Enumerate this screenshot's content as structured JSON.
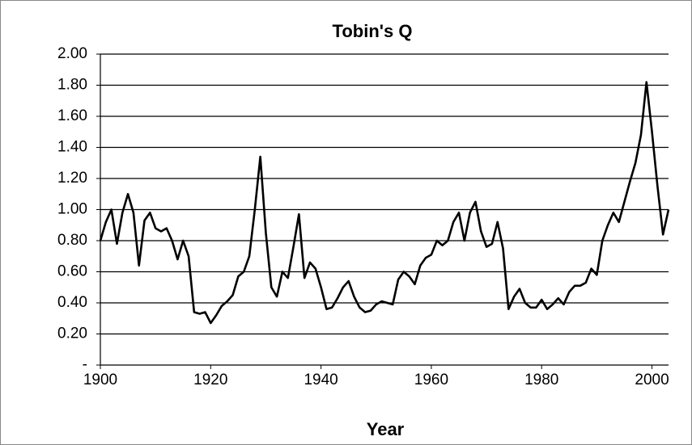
{
  "chart_data": {
    "type": "line",
    "title": "Tobin's Q",
    "x_label": "Year",
    "x": [
      1900,
      1901,
      1902,
      1903,
      1904,
      1905,
      1906,
      1907,
      1908,
      1909,
      1910,
      1911,
      1912,
      1913,
      1914,
      1915,
      1916,
      1917,
      1918,
      1919,
      1920,
      1921,
      1922,
      1923,
      1924,
      1925,
      1926,
      1927,
      1928,
      1929,
      1930,
      1931,
      1932,
      1933,
      1934,
      1935,
      1936,
      1937,
      1938,
      1939,
      1940,
      1941,
      1942,
      1943,
      1944,
      1945,
      1946,
      1947,
      1948,
      1949,
      1950,
      1951,
      1952,
      1953,
      1954,
      1955,
      1956,
      1957,
      1958,
      1959,
      1960,
      1961,
      1962,
      1963,
      1964,
      1965,
      1966,
      1967,
      1968,
      1969,
      1970,
      1971,
      1972,
      1973,
      1974,
      1975,
      1976,
      1977,
      1978,
      1979,
      1980,
      1981,
      1982,
      1983,
      1984,
      1985,
      1986,
      1987,
      1988,
      1989,
      1990,
      1991,
      1992,
      1993,
      1994,
      1995,
      1996,
      1997,
      1998,
      1999,
      2000,
      2001,
      2002,
      2003
    ],
    "series": [
      {
        "color": "#000000",
        "values": [
          0.8,
          0.92,
          1.0,
          0.78,
          0.98,
          1.1,
          0.98,
          0.64,
          0.93,
          0.98,
          0.88,
          0.86,
          0.88,
          0.8,
          0.68,
          0.8,
          0.7,
          0.34,
          0.33,
          0.34,
          0.27,
          0.32,
          0.38,
          0.41,
          0.45,
          0.57,
          0.6,
          0.7,
          1.0,
          1.34,
          0.85,
          0.5,
          0.44,
          0.6,
          0.56,
          0.76,
          0.97,
          0.56,
          0.66,
          0.62,
          0.5,
          0.36,
          0.37,
          0.43,
          0.5,
          0.54,
          0.44,
          0.37,
          0.34,
          0.35,
          0.39,
          0.41,
          0.4,
          0.39,
          0.55,
          0.6,
          0.57,
          0.52,
          0.64,
          0.69,
          0.71,
          0.8,
          0.77,
          0.8,
          0.92,
          0.98,
          0.8,
          0.98,
          1.05,
          0.86,
          0.76,
          0.78,
          0.92,
          0.75,
          0.36,
          0.44,
          0.49,
          0.4,
          0.37,
          0.37,
          0.42,
          0.36,
          0.39,
          0.43,
          0.39,
          0.47,
          0.51,
          0.51,
          0.53,
          0.62,
          0.58,
          0.8,
          0.9,
          0.98,
          0.92,
          1.05,
          1.18,
          1.3,
          1.48,
          1.82,
          1.5,
          1.15,
          0.84,
          1.0
        ]
      }
    ],
    "xlim": [
      1900,
      2003
    ],
    "xticks": [
      1900,
      1920,
      1940,
      1960,
      1980,
      2000
    ],
    "ylim": [
      0,
      2
    ],
    "yticks": [
      {
        "value": 0,
        "label": "-"
      },
      {
        "value": 0.2,
        "label": "0.20"
      },
      {
        "value": 0.4,
        "label": "0.40"
      },
      {
        "value": 0.6,
        "label": "0.60"
      },
      {
        "value": 0.8,
        "label": "0.80"
      },
      {
        "value": 1,
        "label": "1.00"
      },
      {
        "value": 1.2,
        "label": "1.20"
      },
      {
        "value": 1.4,
        "label": "1.40"
      },
      {
        "value": 1.6,
        "label": "1.60"
      },
      {
        "value": 1.8,
        "label": "1.80"
      },
      {
        "value": 2,
        "label": "2.00"
      }
    ],
    "grid": true
  }
}
